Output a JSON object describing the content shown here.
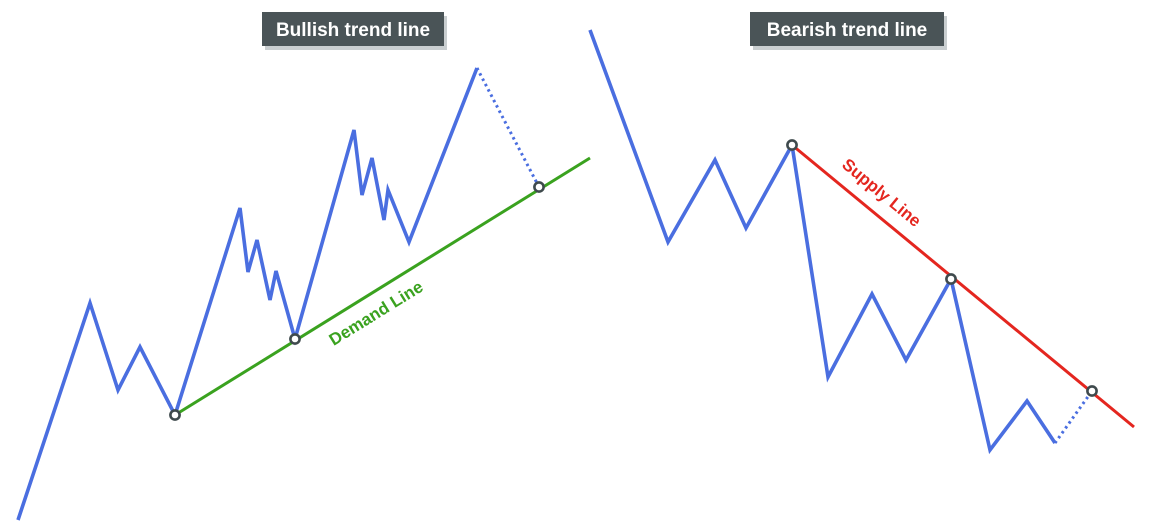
{
  "colors": {
    "price": "#4a6ee0",
    "demand": "#3aa21f",
    "supply": "#e4261f",
    "title_bg": "#4a5457",
    "node_stroke": "#3f4a4d"
  },
  "bullish": {
    "title": "Bullish trend line",
    "line_label": "Demand Line"
  },
  "bearish": {
    "title": "Bearish trend line",
    "line_label": "Supply Line"
  }
}
